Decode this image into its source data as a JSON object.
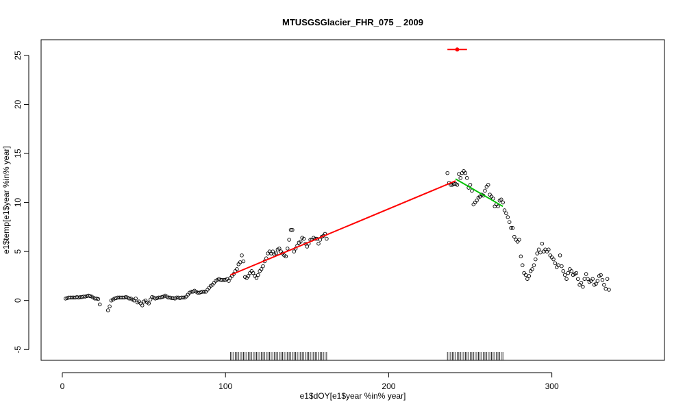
{
  "chart_data": {
    "type": "scatter",
    "title": "MTUSGSGlacier_FHR_075 _ 2009",
    "xlabel": "e1$dOY[e1$year %in% year]",
    "ylabel": "e1$temp[e1$year %in% year]",
    "xlim": [
      -13,
      369
    ],
    "ylim": [
      -6.1,
      26.6
    ],
    "xticks": [
      0,
      100,
      200,
      300
    ],
    "yticks": [
      -5,
      0,
      5,
      10,
      15,
      20,
      25
    ],
    "grid": false,
    "legend": "none",
    "point_color": "#000000",
    "series": [
      {
        "x": [
          2,
          3,
          4,
          5,
          6,
          7,
          8,
          9,
          10,
          11,
          12,
          13,
          14,
          15,
          16,
          17,
          18,
          19,
          20,
          21,
          22,
          23,
          28,
          29,
          30,
          31,
          32,
          33,
          34,
          35,
          36,
          37,
          38,
          39,
          40,
          41,
          42,
          43,
          44,
          45,
          46,
          47,
          48,
          49,
          50,
          51,
          52,
          53,
          54,
          55,
          56,
          57,
          58,
          59,
          60,
          61,
          62,
          63,
          64,
          65,
          66,
          67,
          68,
          69,
          70,
          71,
          72,
          73,
          74,
          75,
          76,
          77,
          78,
          79,
          80,
          81,
          82,
          83,
          84,
          85,
          86,
          87,
          88,
          89,
          90,
          91,
          92,
          93,
          94,
          95,
          96,
          97,
          98,
          99,
          100,
          101,
          102,
          103,
          104,
          105,
          106,
          107,
          108,
          109,
          110,
          111,
          112,
          113,
          114,
          115,
          116,
          117,
          118,
          119,
          120,
          121,
          122,
          123,
          124,
          125,
          126,
          127,
          128,
          129,
          130,
          131,
          132,
          133,
          134,
          135,
          136,
          137,
          138,
          139,
          140,
          141,
          142,
          143,
          144,
          145,
          146,
          147,
          148,
          149,
          150,
          151,
          152,
          153,
          154,
          155,
          156,
          157,
          158,
          159,
          160,
          161,
          162,
          236,
          237,
          238,
          239,
          240,
          241,
          242,
          243,
          244,
          245,
          246,
          247,
          248,
          249,
          250,
          251,
          252,
          253,
          254,
          255,
          256,
          257,
          258,
          259,
          260,
          261,
          262,
          263,
          264,
          265,
          266,
          267,
          268,
          269,
          270,
          271,
          272,
          273,
          274,
          275,
          276,
          277,
          278,
          279,
          280,
          281,
          282,
          283,
          284,
          285,
          286,
          287,
          288,
          289,
          290,
          291,
          292,
          293,
          294,
          295,
          296,
          297,
          298,
          299,
          300,
          301,
          302,
          303,
          304,
          305,
          306,
          307,
          308,
          309,
          310,
          311,
          312,
          313,
          314,
          315,
          316,
          317,
          318,
          319,
          320,
          321,
          322,
          323,
          324,
          325,
          326,
          327,
          328,
          329,
          330,
          331,
          332,
          333,
          334,
          335
        ],
        "y": [
          0.2,
          0.25,
          0.3,
          0.3,
          0.3,
          0.3,
          0.3,
          0.35,
          0.3,
          0.35,
          0.35,
          0.4,
          0.4,
          0.45,
          0.5,
          0.45,
          0.4,
          0.3,
          0.2,
          0.2,
          0.15,
          -0.4,
          -1.0,
          -0.6,
          0.0,
          0.1,
          0.2,
          0.25,
          0.3,
          0.3,
          0.3,
          0.3,
          0.3,
          0.35,
          0.3,
          0.2,
          0.2,
          0.1,
          0.0,
          0.2,
          -0.2,
          -0.1,
          -0.3,
          -0.5,
          -0.1,
          0.0,
          -0.2,
          -0.3,
          0.1,
          0.35,
          0.3,
          0.2,
          0.25,
          0.3,
          0.3,
          0.35,
          0.4,
          0.5,
          0.4,
          0.3,
          0.3,
          0.25,
          0.25,
          0.2,
          0.3,
          0.3,
          0.25,
          0.3,
          0.3,
          0.3,
          0.4,
          0.6,
          0.8,
          0.9,
          0.9,
          1.0,
          0.9,
          0.8,
          0.8,
          0.85,
          0.9,
          0.9,
          0.9,
          1.1,
          1.3,
          1.5,
          1.6,
          1.8,
          2.0,
          2.1,
          2.2,
          2.1,
          2.1,
          2.1,
          2.1,
          2.2,
          2.0,
          2.3,
          2.5,
          2.7,
          3.0,
          3.2,
          3.7,
          3.9,
          4.6,
          4.0,
          2.4,
          2.3,
          2.5,
          2.8,
          3.0,
          2.8,
          2.5,
          2.3,
          2.6,
          3.0,
          3.2,
          3.5,
          4.0,
          4.3,
          4.8,
          5.0,
          4.8,
          5.0,
          4.7,
          4.8,
          5.2,
          5.3,
          5.0,
          4.8,
          4.6,
          4.5,
          5.3,
          6.2,
          7.2,
          7.2,
          5.0,
          5.3,
          5.6,
          5.9,
          6.0,
          6.4,
          6.3,
          5.8,
          5.5,
          5.8,
          6.2,
          6.2,
          6.4,
          6.3,
          6.3,
          5.8,
          6.2,
          6.5,
          6.6,
          6.8,
          6.3,
          13.0,
          12.0,
          11.8,
          11.8,
          11.9,
          11.9,
          11.8,
          12.9,
          12.5,
          13.0,
          13.2,
          13.0,
          12.5,
          11.5,
          11.8,
          11.2,
          9.8,
          10.0,
          10.2,
          10.5,
          10.6,
          10.8,
          10.7,
          11.2,
          11.6,
          11.8,
          10.8,
          10.6,
          10.4,
          9.6,
          9.8,
          9.6,
          10.2,
          10.3,
          10.0,
          9.2,
          8.9,
          8.5,
          8.0,
          7.4,
          7.4,
          6.5,
          6.2,
          6.0,
          6.2,
          4.5,
          3.6,
          2.8,
          2.6,
          2.2,
          2.5,
          3.0,
          3.2,
          3.6,
          4.2,
          4.8,
          5.2,
          4.9,
          5.8,
          5.0,
          5.2,
          5.0,
          5.2,
          4.6,
          4.4,
          4.2,
          3.8,
          3.4,
          3.6,
          4.6,
          3.5,
          3.0,
          2.6,
          2.2,
          2.8,
          3.2,
          3.0,
          2.6,
          2.7,
          2.8,
          2.2,
          1.6,
          1.8,
          1.4,
          2.2,
          2.7,
          2.2,
          1.9,
          2.0,
          2.2,
          1.6,
          1.7,
          2.0,
          2.5,
          2.6,
          2.1,
          1.6,
          1.2,
          2.2,
          1.1
        ]
      }
    ],
    "fit_lines": [
      {
        "name": "",
        "color": "#ff0000",
        "x": [
          103,
          241
        ],
        "y": [
          2.6,
          12.2
        ]
      },
      {
        "name": "",
        "color": "#00c000",
        "x": [
          241,
          270
        ],
        "y": [
          12.4,
          9.6
        ]
      },
      {
        "name": "",
        "color": "#ff0000",
        "x": [
          236,
          248
        ],
        "y": [
          25.6,
          25.6
        ],
        "marker_x": 242
      }
    ],
    "rug_segments": [
      {
        "from": 103,
        "to": 162
      },
      {
        "from": 236,
        "to": 270
      }
    ]
  }
}
